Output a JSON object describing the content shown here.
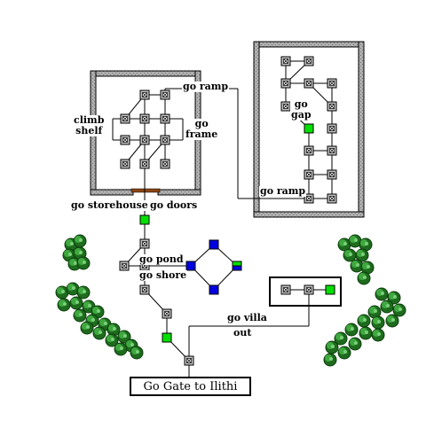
{
  "labels": {
    "go_ramp_top": "go ramp",
    "climb_shelf": "climb\nshelf",
    "go_frame": "go\nframe",
    "go_gap": "go\ngap",
    "go_ramp_right": "go ramp",
    "go_storehouse": "go storehouse",
    "go_doors": "go doors",
    "go_pond": "go pond",
    "go_shore": "go shore",
    "go_villa": "go villa",
    "out": "out",
    "gate": "Go Gate to Ilithi"
  },
  "colors": {
    "room": "#c0c0c0",
    "green_room": "#00e000",
    "blue_room": "#0000e0",
    "wall": "#909090",
    "door": "#8b4513",
    "tree_dark": "#1e6b1e",
    "tree_light": "#3fa83f"
  }
}
